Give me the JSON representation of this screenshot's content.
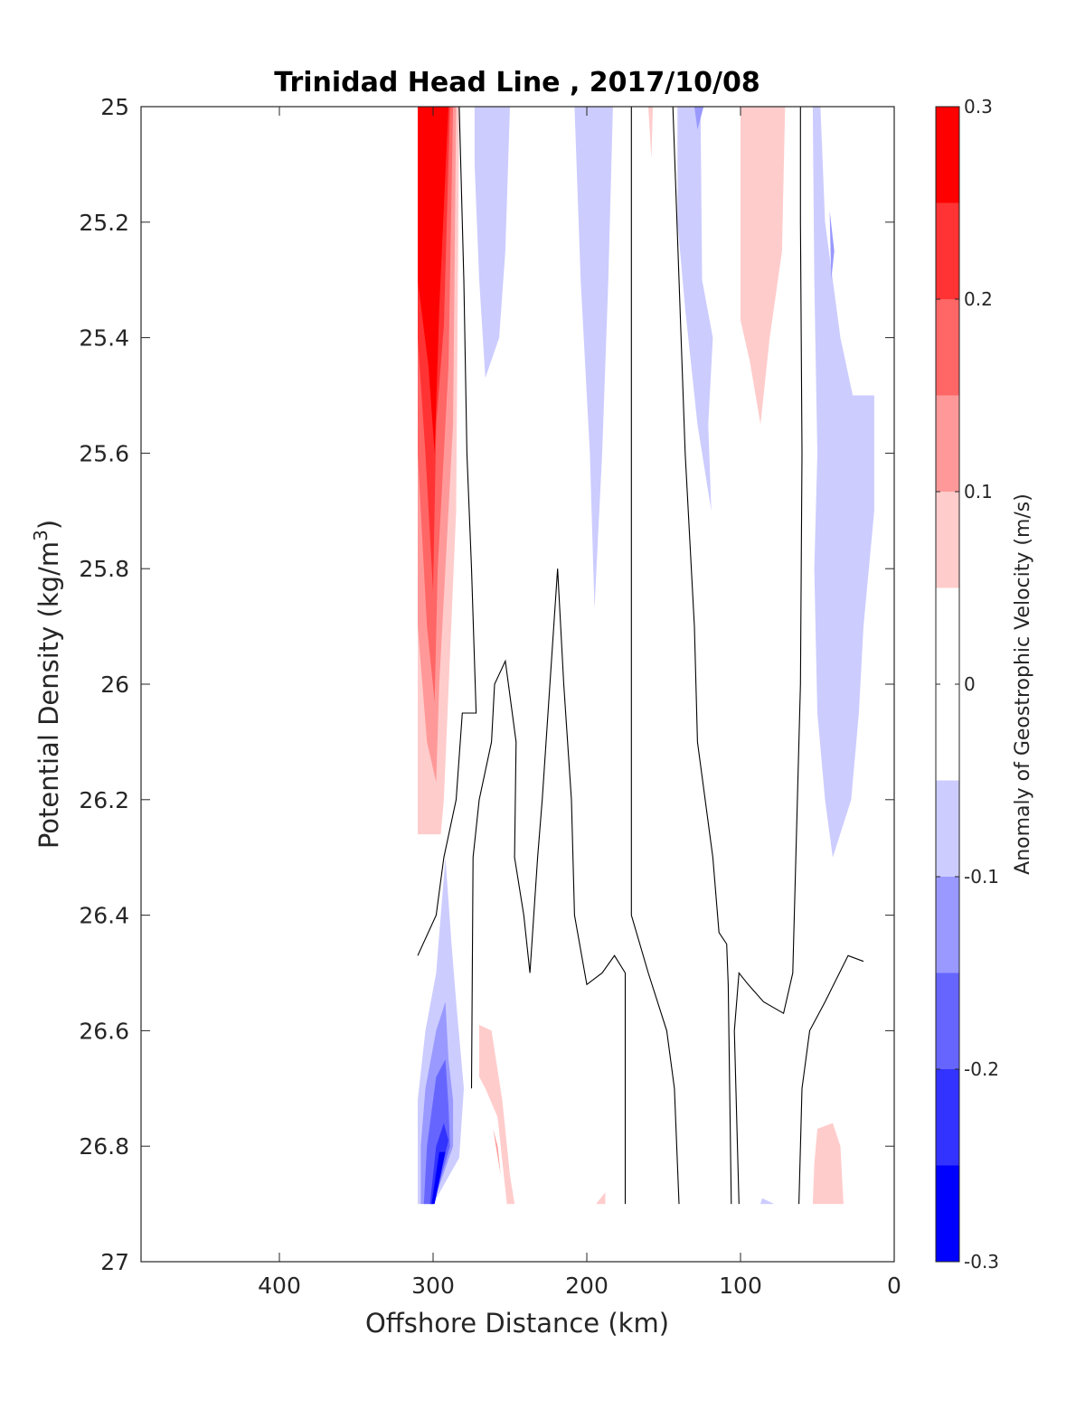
{
  "chart_data": {
    "type": "contour",
    "title": "Trinidad Head Line , 2017/10/08",
    "xlabel": "Offshore Distance (km)",
    "ylabel_main": "Potential Density (kg/m",
    "ylabel_sup": "3",
    "ylabel_close": ")",
    "x_reversed": true,
    "xlim": [
      0,
      490
    ],
    "ylim": [
      25,
      27
    ],
    "y_reversed": true,
    "x_ticks": [
      400,
      300,
      200,
      100,
      0
    ],
    "x_tick_labels": [
      "400",
      "300",
      "200",
      "100",
      "0"
    ],
    "y_ticks": [
      25,
      25.2,
      25.4,
      25.6,
      25.8,
      26,
      26.2,
      26.4,
      26.6,
      26.8,
      27
    ],
    "y_tick_labels": [
      "25",
      "25.2",
      "25.4",
      "25.6",
      "25.8",
      "26",
      "26.2",
      "26.4",
      "26.6",
      "26.8",
      "27"
    ],
    "colorbar": {
      "label": "Anomaly of Geostrophic Velocity (m/s)",
      "range": [
        -0.3,
        0.3
      ],
      "tick_values": [
        0.3,
        0.2,
        0.1,
        0,
        -0.1,
        -0.2,
        -0.3
      ],
      "tick_labels": [
        "0.3",
        "0.2",
        "0.1",
        "0",
        "-0.1",
        "-0.2",
        "-0.3"
      ],
      "levels": [
        {
          "min": 0.25,
          "max": 0.3,
          "color": "#ff0000"
        },
        {
          "min": 0.2,
          "max": 0.25,
          "color": "#ff3333"
        },
        {
          "min": 0.15,
          "max": 0.2,
          "color": "#ff6666"
        },
        {
          "min": 0.1,
          "max": 0.15,
          "color": "#ff9999"
        },
        {
          "min": 0.05,
          "max": 0.1,
          "color": "#ffcccc"
        },
        {
          "min": -0.05,
          "max": 0.05,
          "color": "#ffffff"
        },
        {
          "min": -0.1,
          "max": -0.05,
          "color": "#ccccff"
        },
        {
          "min": -0.15,
          "max": -0.1,
          "color": "#9999ff"
        },
        {
          "min": -0.2,
          "max": -0.15,
          "color": "#6666ff"
        },
        {
          "min": -0.25,
          "max": -0.2,
          "color": "#3333ff"
        },
        {
          "min": -0.3,
          "max": -0.25,
          "color": "#0000ff"
        }
      ]
    },
    "filled_regions": [
      {
        "name": "red-jet-outer-0.05",
        "color": "#ffcccc",
        "points": [
          [
            310,
            25
          ],
          [
            283,
            25
          ],
          [
            285,
            25.7
          ],
          [
            293,
            26.2
          ],
          [
            295,
            26.26
          ],
          [
            310,
            26.26
          ]
        ]
      },
      {
        "name": "red-jet-0.1",
        "color": "#ff9999",
        "points": [
          [
            310,
            25
          ],
          [
            285,
            25
          ],
          [
            287,
            25.55
          ],
          [
            296,
            26
          ],
          [
            298,
            26.17
          ],
          [
            304,
            26.1
          ],
          [
            310,
            25.9
          ]
        ]
      },
      {
        "name": "red-jet-0.15",
        "color": "#ff6666",
        "points": [
          [
            310,
            25
          ],
          [
            287,
            25
          ],
          [
            290,
            25.45
          ],
          [
            297,
            25.8
          ],
          [
            299,
            26.03
          ],
          [
            304,
            25.9
          ],
          [
            310,
            25.6
          ]
        ]
      },
      {
        "name": "red-jet-0.2",
        "color": "#ff3333",
        "points": [
          [
            310,
            25
          ],
          [
            289,
            25
          ],
          [
            293,
            25.38
          ],
          [
            298,
            25.55
          ],
          [
            300,
            25.84
          ],
          [
            305,
            25.6
          ],
          [
            310,
            25.4
          ]
        ]
      },
      {
        "name": "red-jet-0.25",
        "color": "#ff0000",
        "points": [
          [
            310,
            25
          ],
          [
            290,
            25
          ],
          [
            296,
            25.35
          ],
          [
            299,
            25.6
          ],
          [
            303,
            25.45
          ],
          [
            310,
            25.3
          ]
        ]
      },
      {
        "name": "blue-265",
        "color": "#ccccff",
        "points": [
          [
            273,
            25
          ],
          [
            250,
            25
          ],
          [
            253,
            25.25
          ],
          [
            257,
            25.4
          ],
          [
            266,
            25.47
          ],
          [
            270,
            25.3
          ],
          [
            273,
            25.1
          ]
        ]
      },
      {
        "name": "blue-200",
        "color": "#ccccff",
        "points": [
          [
            208,
            25
          ],
          [
            183,
            25
          ],
          [
            186,
            25.3
          ],
          [
            190,
            25.6
          ],
          [
            195,
            25.87
          ],
          [
            198,
            25.6
          ],
          [
            204,
            25.3
          ]
        ]
      },
      {
        "name": "blue-125",
        "color": "#ccccff",
        "points": [
          [
            141,
            25
          ],
          [
            126,
            25
          ],
          [
            125,
            25.3
          ],
          [
            118,
            25.4
          ],
          [
            121,
            25.55
          ],
          [
            119,
            25.7
          ],
          [
            128,
            25.55
          ],
          [
            136,
            25.35
          ],
          [
            141,
            25.2
          ]
        ]
      },
      {
        "name": "blue-125-core",
        "color": "#9999ff",
        "points": [
          [
            130,
            25
          ],
          [
            124,
            25
          ],
          [
            128,
            25.04
          ]
        ]
      },
      {
        "name": "pink-100",
        "color": "#ffcccc",
        "points": [
          [
            100,
            25
          ],
          [
            71,
            25
          ],
          [
            73,
            25.25
          ],
          [
            81,
            25.4
          ],
          [
            87,
            25.55
          ],
          [
            94,
            25.44
          ],
          [
            100,
            25.37
          ]
        ]
      },
      {
        "name": "pink-160",
        "color": "#ffcccc",
        "points": [
          [
            160,
            25
          ],
          [
            157,
            25
          ],
          [
            158,
            25.09
          ]
        ]
      },
      {
        "name": "blue-right",
        "color": "#ccccff",
        "points": [
          [
            53,
            25
          ],
          [
            48,
            25
          ],
          [
            45,
            25.2
          ],
          [
            35,
            25.4
          ],
          [
            27,
            25.5
          ],
          [
            13,
            25.5
          ],
          [
            13,
            25.7
          ],
          [
            20,
            25.9
          ],
          [
            23,
            26.05
          ],
          [
            28,
            26.2
          ],
          [
            40,
            26.3
          ],
          [
            45,
            26.2
          ],
          [
            50,
            26.05
          ],
          [
            52,
            25.8
          ],
          [
            50,
            25.6
          ],
          [
            52,
            25.3
          ]
        ]
      },
      {
        "name": "blue-right-core",
        "color": "#9999ff",
        "points": [
          [
            42,
            25.18
          ],
          [
            39,
            25.25
          ],
          [
            41,
            25.3
          ]
        ]
      },
      {
        "name": "blue-bottom-0.05",
        "color": "#ccccff",
        "points": [
          [
            310,
            26.9
          ],
          [
            300,
            26.9
          ],
          [
            283,
            26.82
          ],
          [
            280,
            26.7
          ],
          [
            285,
            26.55
          ],
          [
            288,
            26.45
          ],
          [
            292,
            26.3
          ],
          [
            298,
            26.5
          ],
          [
            305,
            26.6
          ],
          [
            310,
            26.72
          ]
        ]
      },
      {
        "name": "blue-bottom-0.1",
        "color": "#9999ff",
        "points": [
          [
            308,
            26.9
          ],
          [
            300,
            26.9
          ],
          [
            287,
            26.8
          ],
          [
            287,
            26.72
          ],
          [
            290,
            26.65
          ],
          [
            292,
            26.55
          ],
          [
            298,
            26.6
          ],
          [
            305,
            26.7
          ],
          [
            308,
            26.8
          ]
        ]
      },
      {
        "name": "blue-bottom-0.15",
        "color": "#6666ff",
        "points": [
          [
            306,
            26.9
          ],
          [
            300,
            26.9
          ],
          [
            289,
            26.8
          ],
          [
            290,
            26.73
          ],
          [
            292,
            26.65
          ],
          [
            298,
            26.68
          ],
          [
            304,
            26.8
          ]
        ]
      },
      {
        "name": "blue-bottom-0.2",
        "color": "#3333ff",
        "points": [
          [
            302,
            26.9
          ],
          [
            300,
            26.9
          ],
          [
            290,
            26.79
          ],
          [
            293,
            26.76
          ],
          [
            298,
            26.8
          ]
        ]
      },
      {
        "name": "blue-bottom-0.25",
        "color": "#0000ff",
        "points": [
          [
            301,
            26.9
          ],
          [
            299,
            26.9
          ],
          [
            292,
            26.81
          ],
          [
            296,
            26.81
          ]
        ]
      },
      {
        "name": "pink-bottom-260",
        "color": "#ffcccc",
        "points": [
          [
            270,
            26.59
          ],
          [
            262,
            26.6
          ],
          [
            255,
            26.72
          ],
          [
            250,
            26.85
          ],
          [
            247,
            26.9
          ],
          [
            252,
            26.9
          ],
          [
            258,
            26.75
          ],
          [
            266,
            26.7
          ],
          [
            270,
            26.68
          ]
        ]
      },
      {
        "name": "pink-bottom-260-core",
        "color": "#ff9999",
        "points": [
          [
            261,
            26.77
          ],
          [
            256,
            26.85
          ],
          [
            258,
            26.8
          ]
        ]
      },
      {
        "name": "pink-bottom-195",
        "color": "#ffcccc",
        "points": [
          [
            188,
            26.88
          ],
          [
            194,
            26.9
          ],
          [
            188,
            26.9
          ]
        ]
      },
      {
        "name": "blue-bottom-80",
        "color": "#ccccff",
        "points": [
          [
            86,
            26.89
          ],
          [
            78,
            26.9
          ],
          [
            87,
            26.9
          ]
        ]
      },
      {
        "name": "pink-bottom-45",
        "color": "#ffcccc",
        "points": [
          [
            50,
            26.77
          ],
          [
            40,
            26.76
          ],
          [
            35,
            26.8
          ],
          [
            33,
            26.9
          ],
          [
            53,
            26.9
          ],
          [
            52,
            26.83
          ]
        ]
      }
    ],
    "contour_lines": [
      [
        [
          283,
          25
        ],
        [
          280,
          25.3
        ],
        [
          278,
          25.6
        ],
        [
          275,
          25.8
        ],
        [
          272,
          26.05
        ],
        [
          281,
          26.05
        ],
        [
          285,
          26.2
        ],
        [
          293,
          26.3
        ],
        [
          298,
          26.4
        ],
        [
          310,
          26.47
        ]
      ],
      [
        [
          275,
          26.7
        ],
        [
          274,
          26.3
        ],
        [
          270,
          26.2
        ],
        [
          262,
          26.1
        ],
        [
          260,
          26
        ],
        [
          253,
          25.96
        ],
        [
          246,
          26.1
        ],
        [
          247,
          26.3
        ],
        [
          241,
          26.4
        ],
        [
          237,
          26.5
        ],
        [
          232,
          26.3
        ],
        [
          229,
          26.2
        ],
        [
          224,
          26
        ],
        [
          219,
          25.8
        ],
        [
          215,
          26
        ],
        [
          210,
          26.2
        ],
        [
          208,
          26.4
        ],
        [
          200,
          26.52
        ],
        [
          190,
          26.5
        ],
        [
          182,
          26.47
        ],
        [
          175,
          26.5
        ],
        [
          175,
          26.9
        ]
      ],
      [
        [
          171,
          25
        ],
        [
          171,
          26.4
        ],
        [
          160,
          26.5
        ],
        [
          148,
          26.6
        ],
        [
          143,
          26.7
        ],
        [
          140,
          26.9
        ]
      ],
      [
        [
          144,
          25
        ],
        [
          140,
          25.3
        ],
        [
          136,
          25.6
        ],
        [
          130,
          25.9
        ],
        [
          128,
          26.1
        ],
        [
          118,
          26.3
        ],
        [
          114,
          26.43
        ],
        [
          109,
          26.45
        ],
        [
          108,
          26.52
        ],
        [
          106,
          26.9
        ]
      ],
      [
        [
          101,
          26.9
        ],
        [
          104,
          26.6
        ],
        [
          101,
          26.5
        ],
        [
          95,
          26.52
        ],
        [
          85,
          26.55
        ],
        [
          72,
          26.57
        ],
        [
          66,
          26.5
        ],
        [
          64,
          26.3
        ],
        [
          61,
          26
        ],
        [
          60,
          25.6
        ],
        [
          61,
          25.2
        ],
        [
          61,
          25
        ]
      ],
      [
        [
          62,
          26.9
        ],
        [
          60,
          26.7
        ],
        [
          55,
          26.6
        ],
        [
          45,
          26.55
        ],
        [
          30,
          26.47
        ],
        [
          20,
          26.48
        ]
      ]
    ]
  }
}
